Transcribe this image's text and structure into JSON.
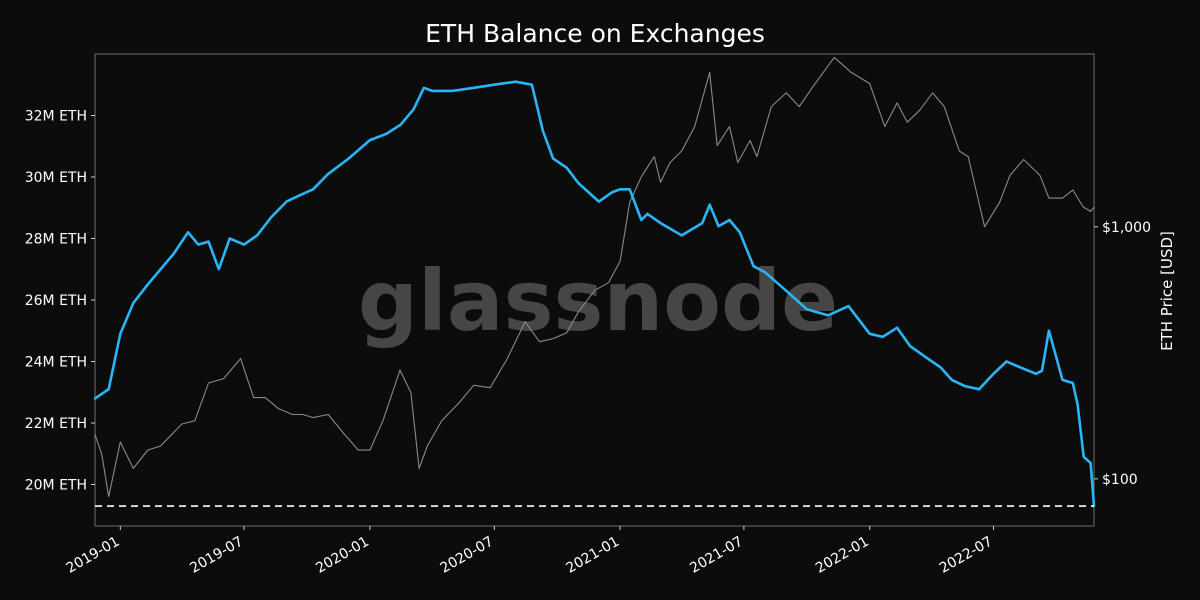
{
  "chart_data": {
    "type": "line",
    "title": "ETH Balance on Exchanges",
    "watermark": "glassnode",
    "ylabel_right": "ETH Price [USD]",
    "x_ticks": [
      "2019-01",
      "2019-07",
      "2020-01",
      "2020-07",
      "2021-01",
      "2021-07",
      "2022-01",
      "2022-07"
    ],
    "y_left_ticks": [
      {
        "value": 20,
        "label": "20M ETH"
      },
      {
        "value": 22,
        "label": "22M ETH"
      },
      {
        "value": 24,
        "label": "24M ETH"
      },
      {
        "value": 26,
        "label": "26M ETH"
      },
      {
        "value": 28,
        "label": "28M ETH"
      },
      {
        "value": 30,
        "label": "30M ETH"
      },
      {
        "value": 32,
        "label": "32M ETH"
      }
    ],
    "y_right_ticks": [
      {
        "value": 100,
        "label": "$100"
      },
      {
        "value": 1000,
        "label": "$1,000"
      }
    ],
    "ylim_left": [
      18.65,
      34.0
    ],
    "ylim_right": [
      65,
      4850
    ],
    "y_right_scale": "log",
    "xlim": [
      "2018-11-25",
      "2022-11-25"
    ],
    "reference_line": {
      "value": 19.3,
      "style": "dashed"
    },
    "grid": false,
    "series": [
      {
        "axis": "left",
        "color": "#29b6f6",
        "x": [
          "2018-11-25",
          "2018-12-15",
          "2019-01-01",
          "2019-01-20",
          "2019-02-10",
          "2019-03-01",
          "2019-03-20",
          "2019-04-10",
          "2019-04-25",
          "2019-05-10",
          "2019-05-25",
          "2019-06-10",
          "2019-07-01",
          "2019-07-20",
          "2019-08-10",
          "2019-09-01",
          "2019-09-20",
          "2019-10-10",
          "2019-11-01",
          "2019-12-01",
          "2020-01-01",
          "2020-01-25",
          "2020-02-15",
          "2020-03-05",
          "2020-03-20",
          "2020-04-01",
          "2020-05-01",
          "2020-06-01",
          "2020-07-01",
          "2020-08-01",
          "2020-08-25",
          "2020-09-10",
          "2020-09-25",
          "2020-10-15",
          "2020-11-01",
          "2020-12-01",
          "2020-12-20",
          "2021-01-01",
          "2021-01-15",
          "2021-02-01",
          "2021-02-10",
          "2021-03-01",
          "2021-04-01",
          "2021-05-01",
          "2021-05-12",
          "2021-05-25",
          "2021-06-10",
          "2021-06-25",
          "2021-07-15",
          "2021-08-01",
          "2021-09-01",
          "2021-10-01",
          "2021-11-01",
          "2021-12-01",
          "2022-01-01",
          "2022-01-20",
          "2022-02-10",
          "2022-03-01",
          "2022-03-20",
          "2022-04-15",
          "2022-05-01",
          "2022-05-20",
          "2022-06-10",
          "2022-07-01",
          "2022-07-20",
          "2022-08-10",
          "2022-09-01",
          "2022-09-10",
          "2022-09-20",
          "2022-10-10",
          "2022-10-25",
          "2022-11-01",
          "2022-11-10",
          "2022-11-20",
          "2022-11-25"
        ],
        "values": [
          22.8,
          23.1,
          24.9,
          25.9,
          26.5,
          27.0,
          27.5,
          28.2,
          27.8,
          27.9,
          27.0,
          28.0,
          27.8,
          28.1,
          28.7,
          29.2,
          29.4,
          29.6,
          30.1,
          30.6,
          31.2,
          31.4,
          31.7,
          32.2,
          32.9,
          32.8,
          32.8,
          32.9,
          33.0,
          33.1,
          33.0,
          31.5,
          30.6,
          30.3,
          29.8,
          29.2,
          29.5,
          29.6,
          29.6,
          28.6,
          28.8,
          28.5,
          28.1,
          28.5,
          29.1,
          28.4,
          28.6,
          28.2,
          27.1,
          26.9,
          26.3,
          25.7,
          25.5,
          25.8,
          24.9,
          24.8,
          25.1,
          24.5,
          24.2,
          23.8,
          23.4,
          23.2,
          23.1,
          23.6,
          24.0,
          23.8,
          23.6,
          23.7,
          25.0,
          23.4,
          23.3,
          22.6,
          20.9,
          20.7,
          19.3
        ]
      },
      {
        "axis": "right",
        "color": "#8a8a8a",
        "x": [
          "2018-11-25",
          "2018-12-05",
          "2018-12-15",
          "2019-01-01",
          "2019-01-20",
          "2019-02-10",
          "2019-03-01",
          "2019-04-01",
          "2019-04-20",
          "2019-05-10",
          "2019-06-01",
          "2019-06-26",
          "2019-07-15",
          "2019-08-01",
          "2019-08-20",
          "2019-09-10",
          "2019-09-25",
          "2019-10-10",
          "2019-11-01",
          "2019-11-25",
          "2019-12-15",
          "2020-01-01",
          "2020-01-20",
          "2020-02-14",
          "2020-03-01",
          "2020-03-13",
          "2020-03-25",
          "2020-04-15",
          "2020-05-10",
          "2020-06-01",
          "2020-06-25",
          "2020-07-20",
          "2020-08-15",
          "2020-09-05",
          "2020-09-25",
          "2020-10-15",
          "2020-11-01",
          "2020-11-25",
          "2020-12-15",
          "2021-01-01",
          "2021-01-15",
          "2021-02-01",
          "2021-02-20",
          "2021-03-01",
          "2021-03-15",
          "2021-04-01",
          "2021-04-20",
          "2021-05-12",
          "2021-05-23",
          "2021-06-10",
          "2021-06-22",
          "2021-07-10",
          "2021-07-20",
          "2021-08-10",
          "2021-09-01",
          "2021-09-20",
          "2021-10-10",
          "2021-11-10",
          "2021-12-05",
          "2022-01-01",
          "2022-01-23",
          "2022-02-10",
          "2022-02-25",
          "2022-03-15",
          "2022-04-03",
          "2022-04-20",
          "2022-05-12",
          "2022-05-25",
          "2022-06-18",
          "2022-07-10",
          "2022-07-25",
          "2022-08-14",
          "2022-09-07",
          "2022-09-20",
          "2022-10-10",
          "2022-10-25",
          "2022-11-09",
          "2022-11-20",
          "2022-11-25"
        ],
        "values": [
          150,
          125,
          85,
          140,
          110,
          130,
          135,
          165,
          170,
          240,
          250,
          300,
          210,
          210,
          190,
          180,
          180,
          175,
          180,
          150,
          130,
          130,
          170,
          270,
          220,
          110,
          135,
          170,
          200,
          235,
          230,
          300,
          420,
          350,
          360,
          380,
          460,
          560,
          600,
          730,
          1250,
          1580,
          1900,
          1500,
          1800,
          2000,
          2500,
          4100,
          2100,
          2500,
          1800,
          2200,
          1900,
          3000,
          3400,
          3000,
          3600,
          4700,
          4100,
          3700,
          2500,
          3100,
          2600,
          2900,
          3400,
          3000,
          2000,
          1900,
          1000,
          1250,
          1600,
          1850,
          1600,
          1300,
          1300,
          1400,
          1200,
          1150,
          1200
        ]
      }
    ]
  }
}
